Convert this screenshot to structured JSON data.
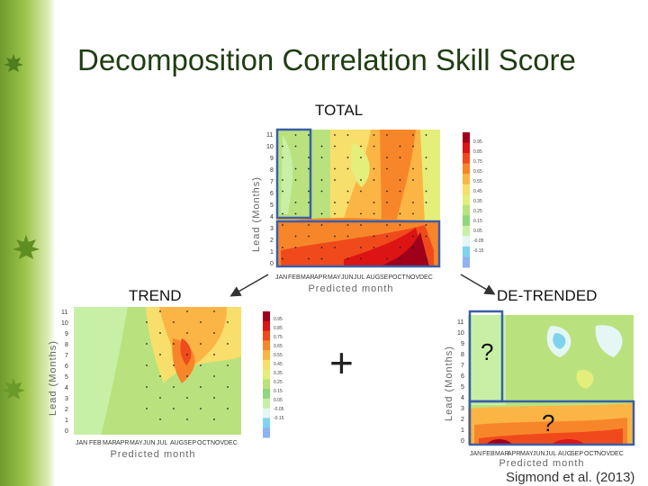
{
  "slide": {
    "title": "Decomposition Correlation Skill Score",
    "citation": "Sigmond et al. (2013)",
    "plus_sign": "+"
  },
  "panels": {
    "total": {
      "label": "TOTAL"
    },
    "trend": {
      "label": "TREND"
    },
    "detrended": {
      "label": "DE-TRENDED",
      "question_marks": [
        "?",
        "?"
      ]
    }
  },
  "axes": {
    "ylabel": "Lead (Months)",
    "xlabel": "Predicted month",
    "lead_ticks": [
      "0",
      "1",
      "2",
      "3",
      "4",
      "5",
      "6",
      "7",
      "8",
      "9",
      "10",
      "11"
    ],
    "month_ticks": [
      "JAN",
      "FEB",
      "MAR",
      "APR",
      "MAY",
      "JUN",
      "JUL",
      "AUG",
      "SEP",
      "OCT",
      "NOV",
      "DEC"
    ]
  },
  "colorbar": {
    "ticks": [
      "0.95",
      "0.85",
      "0.75",
      "0.65",
      "0.55",
      "0.45",
      "0.35",
      "0.25",
      "0.15",
      "0.05",
      "-0.05",
      "-0.15"
    ],
    "colors": [
      "#a0001a",
      "#dd1414",
      "#f04a1c",
      "#f7862a",
      "#fbb545",
      "#f8de6a",
      "#e4ee7a",
      "#b9e27e",
      "#8fd67d",
      "#c7f0a6",
      "#e4f7f5",
      "#7fd3ee",
      "#8fb2f2"
    ]
  }
}
